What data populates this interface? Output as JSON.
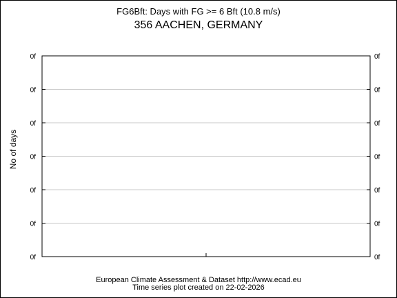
{
  "header": {
    "title": "FG6Bft: Days with FG >= 6 Bft (10.8 m/s)",
    "subtitle": "356 AACHEN, GERMANY"
  },
  "chart_data": {
    "type": "line",
    "title": "FG6Bft: Days with FG >= 6 Bft (10.8 m/s)",
    "subtitle": "356 AACHEN, GERMANY",
    "xlabel": "",
    "ylabel": "No of days",
    "y_tick_labels": [
      "0f",
      "0f",
      "0f",
      "0f",
      "0f",
      "0f",
      "0f"
    ],
    "x_tick_labels": [],
    "series": [],
    "grid": true,
    "legend": "none",
    "colors": {
      "grid": "#c8c8c8",
      "axis": "#000000",
      "background": "#ffffff"
    }
  },
  "footer": {
    "line1": "European Climate Assessment & Dataset  http://www.ecad.eu",
    "line2": "Time series plot created on 22-02-2026"
  }
}
